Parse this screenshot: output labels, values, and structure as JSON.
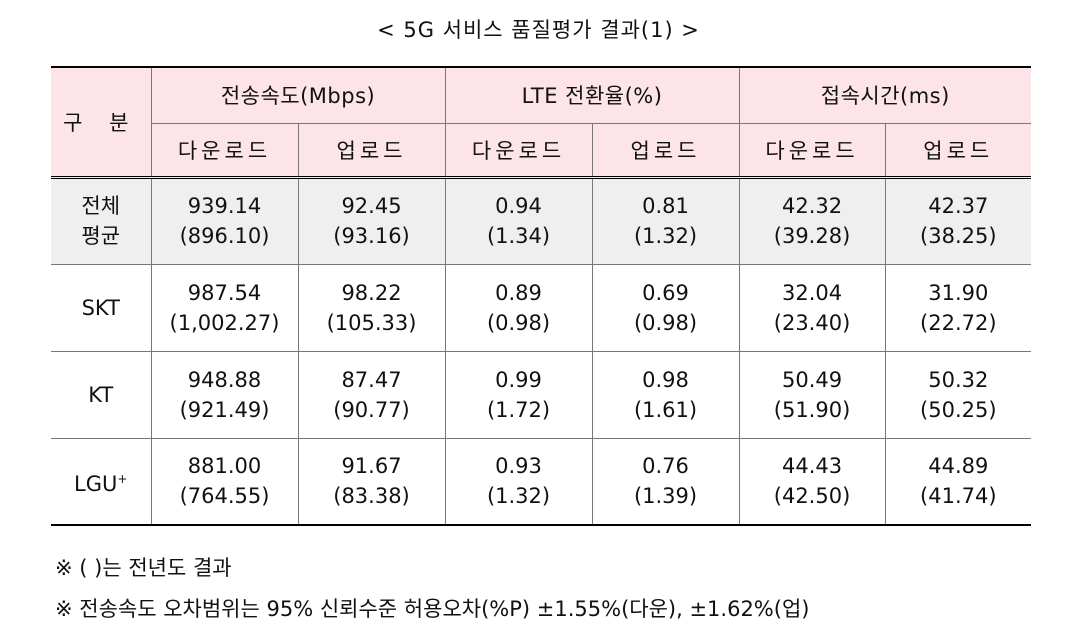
{
  "title": "< 5G 서비스 품질평가 결과(1) >",
  "table": {
    "corner_label": "구 분",
    "groups": [
      "전송속도(Mbps)",
      "LTE 전환율(%)",
      "접속시간(ms)"
    ],
    "subheaders": [
      "다운로드",
      "업로드",
      "다운로드",
      "업로드",
      "다운로드",
      "업로드"
    ],
    "average": {
      "label_line1": "전체",
      "label_line2": "평균",
      "values": [
        "939.14",
        "92.45",
        "0.94",
        "0.81",
        "42.32",
        "42.37"
      ],
      "previous": [
        "(896.10)",
        "(93.16)",
        "(1.34)",
        "(1.32)",
        "(39.28)",
        "(38.25)"
      ]
    },
    "rows": [
      {
        "carrier": "SKT",
        "values": [
          "987.54",
          "98.22",
          "0.89",
          "0.69",
          "32.04",
          "31.90"
        ],
        "previous": [
          "(1,002.27)",
          "(105.33)",
          "(0.98)",
          "(0.98)",
          "(23.40)",
          "(22.72)"
        ]
      },
      {
        "carrier": "KT",
        "values": [
          "948.88",
          "87.47",
          "0.99",
          "0.98",
          "50.49",
          "50.32"
        ],
        "previous": [
          "(921.49)",
          "(90.77)",
          "(1.72)",
          "(1.61)",
          "(51.90)",
          "(50.25)"
        ]
      },
      {
        "carrier": "LGU",
        "carrier_sup": "+",
        "values": [
          "881.00",
          "91.67",
          "0.93",
          "0.76",
          "44.43",
          "44.89"
        ],
        "previous": [
          "(764.55)",
          "(83.38)",
          "(1.32)",
          "(1.39)",
          "(42.50)",
          "(41.74)"
        ]
      }
    ]
  },
  "notes": [
    "※ ( )는 전년도 결과",
    "※ 전송속도 오차범위는 95% 신뢰수준 허용오차(%P) ±1.55%(다운), ±1.62%(업)"
  ],
  "colors": {
    "header_bg": "#fce4e8",
    "average_bg": "#efefef"
  }
}
